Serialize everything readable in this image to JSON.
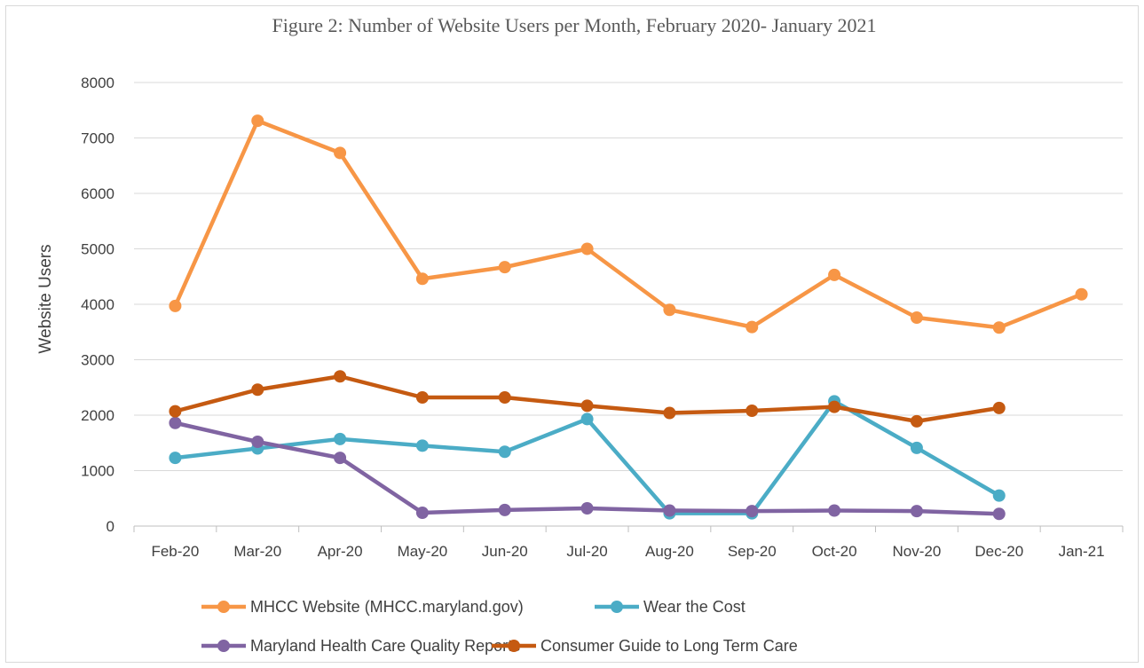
{
  "chart_data": {
    "type": "line",
    "title": "Figure 2: Number of Website Users per Month, February 2020- January 2021",
    "xlabel": "",
    "ylabel": "Website Users",
    "ylim": [
      0,
      8000
    ],
    "yticks": [
      "0",
      "1000",
      "2000",
      "3000",
      "4000",
      "5000",
      "6000",
      "7000",
      "8000"
    ],
    "categories": [
      "Feb-20",
      "Mar-20",
      "Apr-20",
      "May-20",
      "Jun-20",
      "Jul-20",
      "Aug-20",
      "Sep-20",
      "Oct-20",
      "Nov-20",
      "Dec-20",
      "Jan-21"
    ],
    "grid": "horizontal",
    "legend_position": "bottom",
    "series": [
      {
        "name": "MHCC Website (MHCC.maryland.gov)",
        "color": "#f79646",
        "values": [
          3970,
          7310,
          6730,
          4460,
          4670,
          5000,
          3900,
          3590,
          4530,
          3760,
          3580,
          4180
        ]
      },
      {
        "name": "Wear the Cost",
        "color": "#4bacc6",
        "values": [
          1230,
          1400,
          1570,
          1450,
          1340,
          1930,
          230,
          230,
          2250,
          1410,
          550,
          null
        ]
      },
      {
        "name": "Maryland Health Care Quality Reports",
        "color": "#8064a2",
        "values": [
          1860,
          1520,
          1230,
          240,
          290,
          320,
          280,
          270,
          280,
          270,
          220,
          null
        ]
      },
      {
        "name": "Consumer Guide to Long Term Care",
        "color": "#c55a11",
        "values": [
          2070,
          2460,
          2700,
          2320,
          2320,
          2170,
          2040,
          2080,
          2150,
          1890,
          2130,
          null
        ]
      }
    ]
  }
}
